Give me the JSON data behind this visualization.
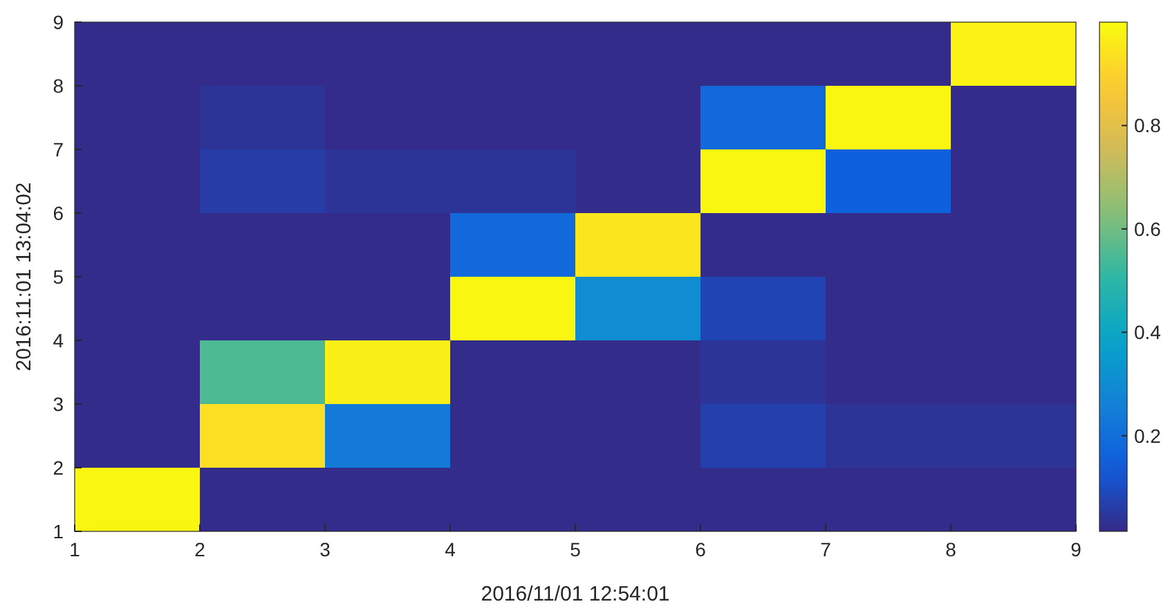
{
  "chart_data": {
    "type": "heatmap",
    "xlabel": "2016/11/01 12:54:01",
    "ylabel": "2016:11:01 13:04:02",
    "xlim": [
      1,
      9
    ],
    "xticks": [
      1,
      2,
      3,
      4,
      5,
      6,
      7,
      8,
      9
    ],
    "ylim": [
      1,
      9
    ],
    "yticks": [
      1,
      2,
      3,
      4,
      5,
      6,
      7,
      8,
      9
    ],
    "cells": [
      [
        0.02,
        0.02,
        0.02,
        0.02,
        0.02,
        0.02,
        0.02,
        0.98
      ],
      [
        0.02,
        0.04,
        0.02,
        0.02,
        0.02,
        0.18,
        0.99,
        0.02
      ],
      [
        0.02,
        0.06,
        0.04,
        0.04,
        0.02,
        0.99,
        0.15,
        0.02
      ],
      [
        0.02,
        0.02,
        0.02,
        0.18,
        0.95,
        0.02,
        0.02,
        0.02
      ],
      [
        0.02,
        0.02,
        0.02,
        0.99,
        0.3,
        0.08,
        0.02,
        0.02
      ],
      [
        0.02,
        0.55,
        0.97,
        0.02,
        0.02,
        0.04,
        0.02,
        0.02
      ],
      [
        0.02,
        0.93,
        0.24,
        0.02,
        0.02,
        0.07,
        0.04,
        0.04
      ],
      [
        0.99,
        0.02,
        0.02,
        0.02,
        0.02,
        0.02,
        0.02,
        0.02
      ]
    ],
    "clim": [
      0.015,
      1
    ],
    "cticks": [
      0.2,
      0.4,
      0.6,
      0.8
    ]
  }
}
